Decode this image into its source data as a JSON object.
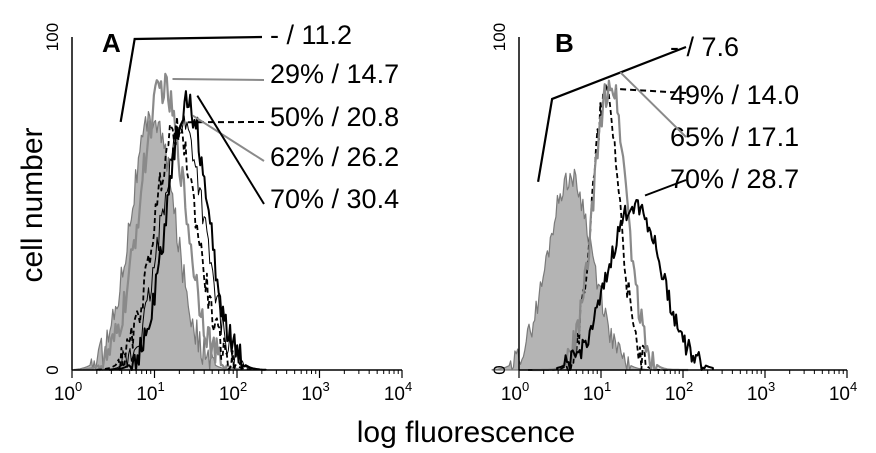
{
  "figure": {
    "ylabel": "cell number",
    "xlabel": "log fluorescence"
  },
  "chart_data": [
    {
      "type": "histogram",
      "panel_label": "A",
      "x_scale": "log",
      "xlim": [
        1,
        10000
      ],
      "ylim": [
        0,
        100
      ],
      "y_ticks": [
        "0",
        "100"
      ],
      "x_ticks": [
        {
          "base": "10",
          "exp": "0"
        },
        {
          "base": "10",
          "exp": "1"
        },
        {
          "base": "10",
          "exp": "2"
        },
        {
          "base": "10",
          "exp": "3"
        },
        {
          "base": "10",
          "exp": "4"
        }
      ],
      "series": [
        {
          "label": "-  / 11.2",
          "percent": "-",
          "mfi": 11.2,
          "style": "filled-gray",
          "peak_x": 9.5,
          "peak_y": 76,
          "sigma_log": 0.27
        },
        {
          "label": "29% / 14.7",
          "percent": "29%",
          "mfi": 14.7,
          "style": "gray",
          "peak_x": 12.5,
          "peak_y": 85,
          "sigma_log": 0.27
        },
        {
          "label": "50% / 20.8",
          "percent": "50%",
          "mfi": 20.8,
          "style": "dashed",
          "peak_x": 18,
          "peak_y": 72,
          "sigma_log": 0.26
        },
        {
          "label": "62% / 26.2",
          "percent": "62%",
          "mfi": 26.2,
          "style": "white",
          "peak_x": 22,
          "peak_y": 74,
          "sigma_log": 0.26
        },
        {
          "label": "70% / 30.4",
          "percent": "70%",
          "mfi": 30.4,
          "style": "black",
          "peak_x": 25,
          "peak_y": 80,
          "sigma_log": 0.25
        }
      ]
    },
    {
      "type": "histogram",
      "panel_label": "B",
      "x_scale": "log",
      "xlim": [
        1,
        10000
      ],
      "ylim": [
        0,
        100
      ],
      "y_ticks": [
        "0",
        "100"
      ],
      "x_ticks": [
        {
          "base": "10",
          "exp": "0"
        },
        {
          "base": "10",
          "exp": "1"
        },
        {
          "base": "10",
          "exp": "2"
        },
        {
          "base": "10",
          "exp": "3"
        },
        {
          "base": "10",
          "exp": "4"
        }
      ],
      "series": [
        {
          "label": "-  /  7.6",
          "percent": "-",
          "mfi": 7.6,
          "style": "filled-gray",
          "peak_x": 4.2,
          "peak_y": 58,
          "sigma_log": 0.27
        },
        {
          "label": "49% / 14.0",
          "percent": "49%",
          "mfi": 14.0,
          "style": "dashed",
          "peak_x": 11.5,
          "peak_y": 82,
          "sigma_log": 0.17
        },
        {
          "label": "65% / 17.1",
          "percent": "65%",
          "mfi": 17.1,
          "style": "gray",
          "peak_x": 13,
          "peak_y": 87,
          "sigma_log": 0.2
        },
        {
          "label": "70% / 28.7",
          "percent": "70%",
          "mfi": 28.7,
          "style": "black",
          "peak_x": 26,
          "peak_y": 50,
          "sigma_log": 0.32
        }
      ]
    }
  ]
}
